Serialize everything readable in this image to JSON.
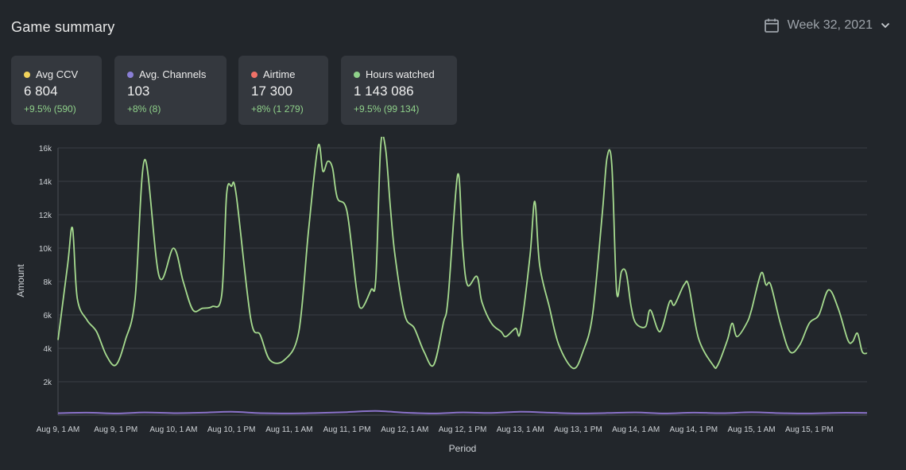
{
  "header": {
    "title": "Game summary",
    "week_label": "Week 32, 2021",
    "calendar_icon": "calendar-icon",
    "chevron_icon": "chevron-down-icon"
  },
  "cards": [
    {
      "label": "Avg CCV",
      "value": "6 804",
      "delta": "+9.5% (590)",
      "color": "#f2d35b"
    },
    {
      "label": "Avg. Channels",
      "value": "103",
      "delta": "+8% (8)",
      "color": "#8a7fd6"
    },
    {
      "label": "Airtime",
      "value": "17 300",
      "delta": "+8% (1 279)",
      "color": "#f07167"
    },
    {
      "label": "Hours watched",
      "value": "1 143 086",
      "delta": "+9.5% (99 134)",
      "color": "#8fd18a"
    }
  ],
  "colors": {
    "background": "#22262b",
    "card": "#34383e",
    "hours_line": "#a6db8f",
    "channels_line": "#8a72c9",
    "delta": "#8fd18a"
  },
  "chart_data": {
    "type": "line",
    "xlabel": "Period",
    "ylabel": "Amount",
    "ylim": [
      0,
      16000
    ],
    "yticks": [
      "2k",
      "4k",
      "6k",
      "8k",
      "10k",
      "12k",
      "14k",
      "16k"
    ],
    "ytick_values": [
      2000,
      4000,
      6000,
      8000,
      10000,
      12000,
      14000,
      16000
    ],
    "xtick_labels": [
      "Aug 9, 1 AM",
      "Aug 9, 1 PM",
      "Aug 10, 1 AM",
      "Aug 10, 1 PM",
      "Aug 11, 1 AM",
      "Aug 11, 1 PM",
      "Aug 12, 1 AM",
      "Aug 12, 1 PM",
      "Aug 13, 1 AM",
      "Aug 13, 1 PM",
      "Aug 14, 1 AM",
      "Aug 14, 1 PM",
      "Aug 15, 1 AM",
      "Aug 15, 1 PM"
    ],
    "x_hours_range": [
      0,
      168
    ],
    "grid": true,
    "series": [
      {
        "color": "#a6db8f",
        "points": [
          [
            0,
            4500
          ],
          [
            2,
            9000
          ],
          [
            3,
            11200
          ],
          [
            4,
            7000
          ],
          [
            6,
            5700
          ],
          [
            8,
            5000
          ],
          [
            10,
            3600
          ],
          [
            12,
            3000
          ],
          [
            14,
            4500
          ],
          [
            16,
            7000
          ],
          [
            18,
            15300
          ],
          [
            21,
            8300
          ],
          [
            24,
            10000
          ],
          [
            26,
            8000
          ],
          [
            28,
            6300
          ],
          [
            30,
            6400
          ],
          [
            32,
            6500
          ],
          [
            34,
            7200
          ],
          [
            35,
            13200
          ],
          [
            36,
            13700
          ],
          [
            37,
            13200
          ],
          [
            40,
            5800
          ],
          [
            42,
            4800
          ],
          [
            44,
            3300
          ],
          [
            47,
            3300
          ],
          [
            50,
            5000
          ],
          [
            52,
            11000
          ],
          [
            54,
            16100
          ],
          [
            55,
            14600
          ],
          [
            56,
            15200
          ],
          [
            57,
            14800
          ],
          [
            58,
            13000
          ],
          [
            60,
            12200
          ],
          [
            62,
            7500
          ],
          [
            63,
            6400
          ],
          [
            65,
            7500
          ],
          [
            66,
            8200
          ],
          [
            67,
            16100
          ],
          [
            68,
            16000
          ],
          [
            69,
            12500
          ],
          [
            70,
            9500
          ],
          [
            72,
            6000
          ],
          [
            74,
            5200
          ],
          [
            76,
            3800
          ],
          [
            78,
            3000
          ],
          [
            80,
            5500
          ],
          [
            81,
            7000
          ],
          [
            83,
            14400
          ],
          [
            84,
            10200
          ],
          [
            85,
            7800
          ],
          [
            87,
            8300
          ],
          [
            88,
            6800
          ],
          [
            90,
            5500
          ],
          [
            92,
            5000
          ],
          [
            93,
            4700
          ],
          [
            95,
            5200
          ],
          [
            96,
            5000
          ],
          [
            98,
            9500
          ],
          [
            99,
            12800
          ],
          [
            100,
            9000
          ],
          [
            102,
            6500
          ],
          [
            104,
            4200
          ],
          [
            107,
            2800
          ],
          [
            109,
            3800
          ],
          [
            111,
            6000
          ],
          [
            113,
            12000
          ],
          [
            114,
            15400
          ],
          [
            115,
            15000
          ],
          [
            116,
            7400
          ],
          [
            117,
            8600
          ],
          [
            118,
            8500
          ],
          [
            119,
            6500
          ],
          [
            120,
            5500
          ],
          [
            122,
            5300
          ],
          [
            123,
            6300
          ],
          [
            125,
            5000
          ],
          [
            127,
            6800
          ],
          [
            128,
            6600
          ],
          [
            130,
            7800
          ],
          [
            131,
            7700
          ],
          [
            133,
            4600
          ],
          [
            136,
            3000
          ],
          [
            137,
            3000
          ],
          [
            139,
            4500
          ],
          [
            140,
            5500
          ],
          [
            141,
            4700
          ],
          [
            143,
            5500
          ],
          [
            144,
            6300
          ],
          [
            146,
            8500
          ],
          [
            147,
            7800
          ],
          [
            148,
            7800
          ],
          [
            150,
            5500
          ],
          [
            152,
            3800
          ],
          [
            154,
            4200
          ],
          [
            156,
            5500
          ],
          [
            158,
            6000
          ],
          [
            160,
            7500
          ],
          [
            162,
            6400
          ],
          [
            164,
            4500
          ],
          [
            165,
            4400
          ],
          [
            166,
            4900
          ],
          [
            167,
            3800
          ],
          [
            168,
            3700
          ]
        ]
      },
      {
        "color": "#8a72c9",
        "points": [
          [
            0,
            120
          ],
          [
            6,
            150
          ],
          [
            12,
            100
          ],
          [
            18,
            160
          ],
          [
            24,
            120
          ],
          [
            30,
            150
          ],
          [
            36,
            200
          ],
          [
            42,
            120
          ],
          [
            48,
            100
          ],
          [
            54,
            130
          ],
          [
            60,
            180
          ],
          [
            66,
            250
          ],
          [
            72,
            150
          ],
          [
            78,
            100
          ],
          [
            84,
            160
          ],
          [
            90,
            130
          ],
          [
            96,
            200
          ],
          [
            102,
            150
          ],
          [
            108,
            100
          ],
          [
            114,
            130
          ],
          [
            120,
            160
          ],
          [
            126,
            100
          ],
          [
            132,
            150
          ],
          [
            138,
            120
          ],
          [
            144,
            170
          ],
          [
            150,
            120
          ],
          [
            156,
            100
          ],
          [
            162,
            140
          ],
          [
            168,
            130
          ]
        ]
      }
    ]
  }
}
